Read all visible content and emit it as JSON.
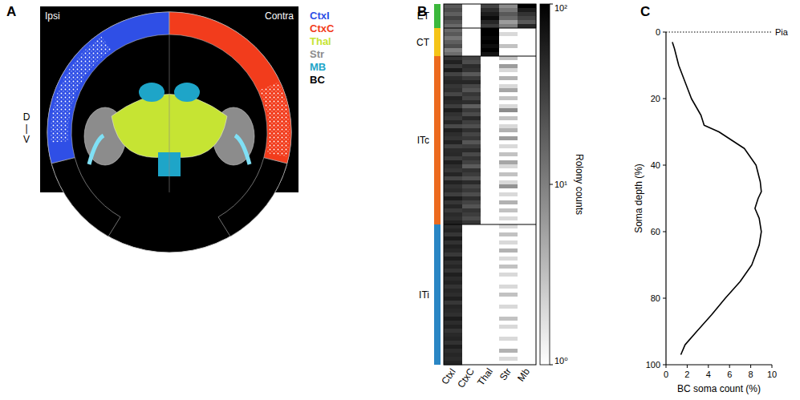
{
  "panel_a": {
    "letter": "A",
    "ipsi": "Ipsi",
    "contra": "Contra",
    "axis_top": "D",
    "axis_mid": "|",
    "axis_bottom": "V",
    "legend": [
      {
        "label": "CtxI",
        "color": "#2f4fe6"
      },
      {
        "label": "CtxC",
        "color": "#f23c1c"
      },
      {
        "label": "Thal",
        "color": "#c6e433"
      },
      {
        "label": "Str",
        "color": "#8c8c8c"
      },
      {
        "label": "MB",
        "color": "#1ea5c8"
      },
      {
        "label": "BC",
        "color": "#000000"
      }
    ]
  },
  "chart_data": [
    {
      "type": "heatmap",
      "letter": "B",
      "columns": [
        "CtxI",
        "CtxC",
        "Thal",
        "Str",
        "Mb"
      ],
      "groups": [
        {
          "label": "ET",
          "color": "#3cb83c",
          "count": 6
        },
        {
          "label": "CT",
          "color": "#f5c419",
          "count": 7
        },
        {
          "label": "ITc",
          "color": "#ec6a1e",
          "count": 42
        },
        {
          "label": "ITi",
          "color": "#2a86c4",
          "count": 35
        }
      ],
      "cells": [
        [
          20,
          1,
          30,
          8,
          100
        ],
        [
          25,
          1,
          45,
          12,
          60
        ],
        [
          18,
          1,
          60,
          20,
          40
        ],
        [
          30,
          1,
          80,
          15,
          30
        ],
        [
          22,
          1,
          50,
          6,
          20
        ],
        [
          15,
          1,
          35,
          10,
          50
        ],
        [
          15,
          1,
          100,
          1,
          1
        ],
        [
          20,
          1,
          100,
          2,
          1
        ],
        [
          12,
          1,
          90,
          1,
          1
        ],
        [
          18,
          1,
          100,
          1,
          1
        ],
        [
          25,
          1,
          80,
          3,
          1
        ],
        [
          10,
          1,
          100,
          1,
          1
        ],
        [
          14,
          1,
          70,
          1,
          1
        ],
        [
          40,
          30,
          1,
          3,
          1
        ],
        [
          55,
          25,
          1,
          1,
          1
        ],
        [
          35,
          45,
          1,
          6,
          1
        ],
        [
          60,
          40,
          1,
          2,
          1
        ],
        [
          30,
          20,
          1,
          1,
          1
        ],
        [
          45,
          35,
          1,
          4,
          1
        ],
        [
          50,
          50,
          1,
          1,
          1
        ],
        [
          38,
          28,
          1,
          2,
          1
        ],
        [
          42,
          22,
          1,
          5,
          1
        ],
        [
          28,
          38,
          1,
          1,
          1
        ],
        [
          52,
          30,
          1,
          3,
          1
        ],
        [
          47,
          44,
          1,
          1,
          1
        ],
        [
          33,
          18,
          1,
          2,
          1
        ],
        [
          58,
          36,
          1,
          8,
          1
        ],
        [
          41,
          26,
          1,
          1,
          1
        ],
        [
          36,
          48,
          1,
          3,
          1
        ],
        [
          49,
          32,
          1,
          1,
          1
        ],
        [
          27,
          24,
          1,
          2,
          1
        ],
        [
          56,
          42,
          1,
          4,
          1
        ],
        [
          44,
          29,
          1,
          1,
          1
        ],
        [
          39,
          37,
          1,
          6,
          1
        ],
        [
          53,
          21,
          1,
          1,
          1
        ],
        [
          31,
          33,
          1,
          2,
          1
        ],
        [
          46,
          46,
          1,
          1,
          1
        ],
        [
          48,
          27,
          1,
          3,
          1
        ],
        [
          34,
          39,
          1,
          1,
          1
        ],
        [
          57,
          31,
          1,
          5,
          1
        ],
        [
          43,
          19,
          1,
          2,
          1
        ],
        [
          37,
          41,
          1,
          1,
          1
        ],
        [
          51,
          34,
          1,
          3,
          1
        ],
        [
          29,
          23,
          1,
          1,
          1
        ],
        [
          54,
          47,
          1,
          2,
          1
        ],
        [
          40,
          28,
          1,
          7,
          1
        ],
        [
          45,
          36,
          1,
          1,
          1
        ],
        [
          32,
          25,
          1,
          2,
          1
        ],
        [
          59,
          43,
          1,
          1,
          1
        ],
        [
          38,
          30,
          1,
          4,
          1
        ],
        [
          50,
          22,
          1,
          1,
          1
        ],
        [
          35,
          40,
          1,
          3,
          1
        ],
        [
          47,
          33,
          1,
          1,
          1
        ],
        [
          42,
          26,
          1,
          2,
          1
        ],
        [
          55,
          38,
          1,
          1,
          1
        ],
        [
          45,
          1,
          1,
          2,
          1
        ],
        [
          52,
          1,
          1,
          1,
          1
        ],
        [
          38,
          1,
          1,
          3,
          1
        ],
        [
          60,
          1,
          1,
          1,
          1
        ],
        [
          41,
          1,
          1,
          2,
          1
        ],
        [
          55,
          1,
          1,
          1,
          1
        ],
        [
          48,
          1,
          1,
          4,
          1
        ],
        [
          36,
          1,
          1,
          1,
          1
        ],
        [
          58,
          1,
          1,
          2,
          1
        ],
        [
          43,
          1,
          1,
          1,
          1
        ],
        [
          50,
          1,
          1,
          3,
          1
        ],
        [
          39,
          1,
          1,
          1,
          1
        ],
        [
          57,
          1,
          1,
          2,
          1
        ],
        [
          46,
          1,
          1,
          1,
          1
        ],
        [
          53,
          1,
          1,
          1,
          1
        ],
        [
          40,
          1,
          1,
          2,
          1
        ],
        [
          49,
          1,
          1,
          1,
          1
        ],
        [
          44,
          1,
          1,
          3,
          1
        ],
        [
          56,
          1,
          1,
          1,
          1
        ],
        [
          37,
          1,
          1,
          1,
          1
        ],
        [
          51,
          1,
          1,
          2,
          1
        ],
        [
          47,
          1,
          1,
          1,
          1
        ],
        [
          42,
          1,
          1,
          1,
          1
        ],
        [
          59,
          1,
          1,
          3,
          1
        ],
        [
          45,
          1,
          1,
          1,
          1
        ],
        [
          54,
          1,
          1,
          2,
          1
        ],
        [
          39,
          1,
          1,
          1,
          1
        ],
        [
          48,
          1,
          1,
          1,
          1
        ],
        [
          52,
          1,
          1,
          2,
          1
        ],
        [
          41,
          1,
          1,
          1,
          1
        ],
        [
          57,
          1,
          1,
          1,
          1
        ],
        [
          44,
          1,
          1,
          4,
          1
        ],
        [
          50,
          1,
          1,
          1,
          1
        ],
        [
          46,
          1,
          1,
          2,
          1
        ],
        [
          53,
          1,
          1,
          1,
          1
        ]
      ],
      "colorbar": {
        "label": "Rolony counts",
        "log": true,
        "lim": [
          1,
          100
        ],
        "ticks": [
          {
            "value": 100,
            "label": "10²"
          },
          {
            "value": 10,
            "label": "10¹"
          },
          {
            "value": 1,
            "label": "10⁰"
          }
        ]
      }
    },
    {
      "type": "line",
      "letter": "C",
      "xlabel": "BC soma count (%)",
      "ylabel": "Soma depth (%)",
      "x": [
        0.6,
        0.8,
        1.2,
        1.8,
        2.4,
        3.3,
        3.6,
        5.0,
        7.4,
        8.5,
        8.9,
        9.0,
        8.7,
        8.4,
        8.8,
        9.0,
        8.8,
        8.1,
        7.0,
        5.6,
        4.3,
        2.9,
        1.8,
        1.4
      ],
      "values": [
        3,
        5,
        10,
        15,
        20,
        25,
        28,
        30,
        35,
        40,
        45,
        48,
        50,
        53,
        56,
        60,
        64,
        70,
        75,
        80,
        85,
        90,
        94,
        97
      ],
      "xlim": [
        0,
        10
      ],
      "xticks": [
        0,
        2,
        4,
        6,
        8,
        10
      ],
      "ylim": [
        100,
        0
      ],
      "yticks": [
        0,
        20,
        40,
        60,
        80,
        100
      ],
      "color": "#000000",
      "annotation": {
        "text": "Pia",
        "value": 0
      }
    }
  ]
}
